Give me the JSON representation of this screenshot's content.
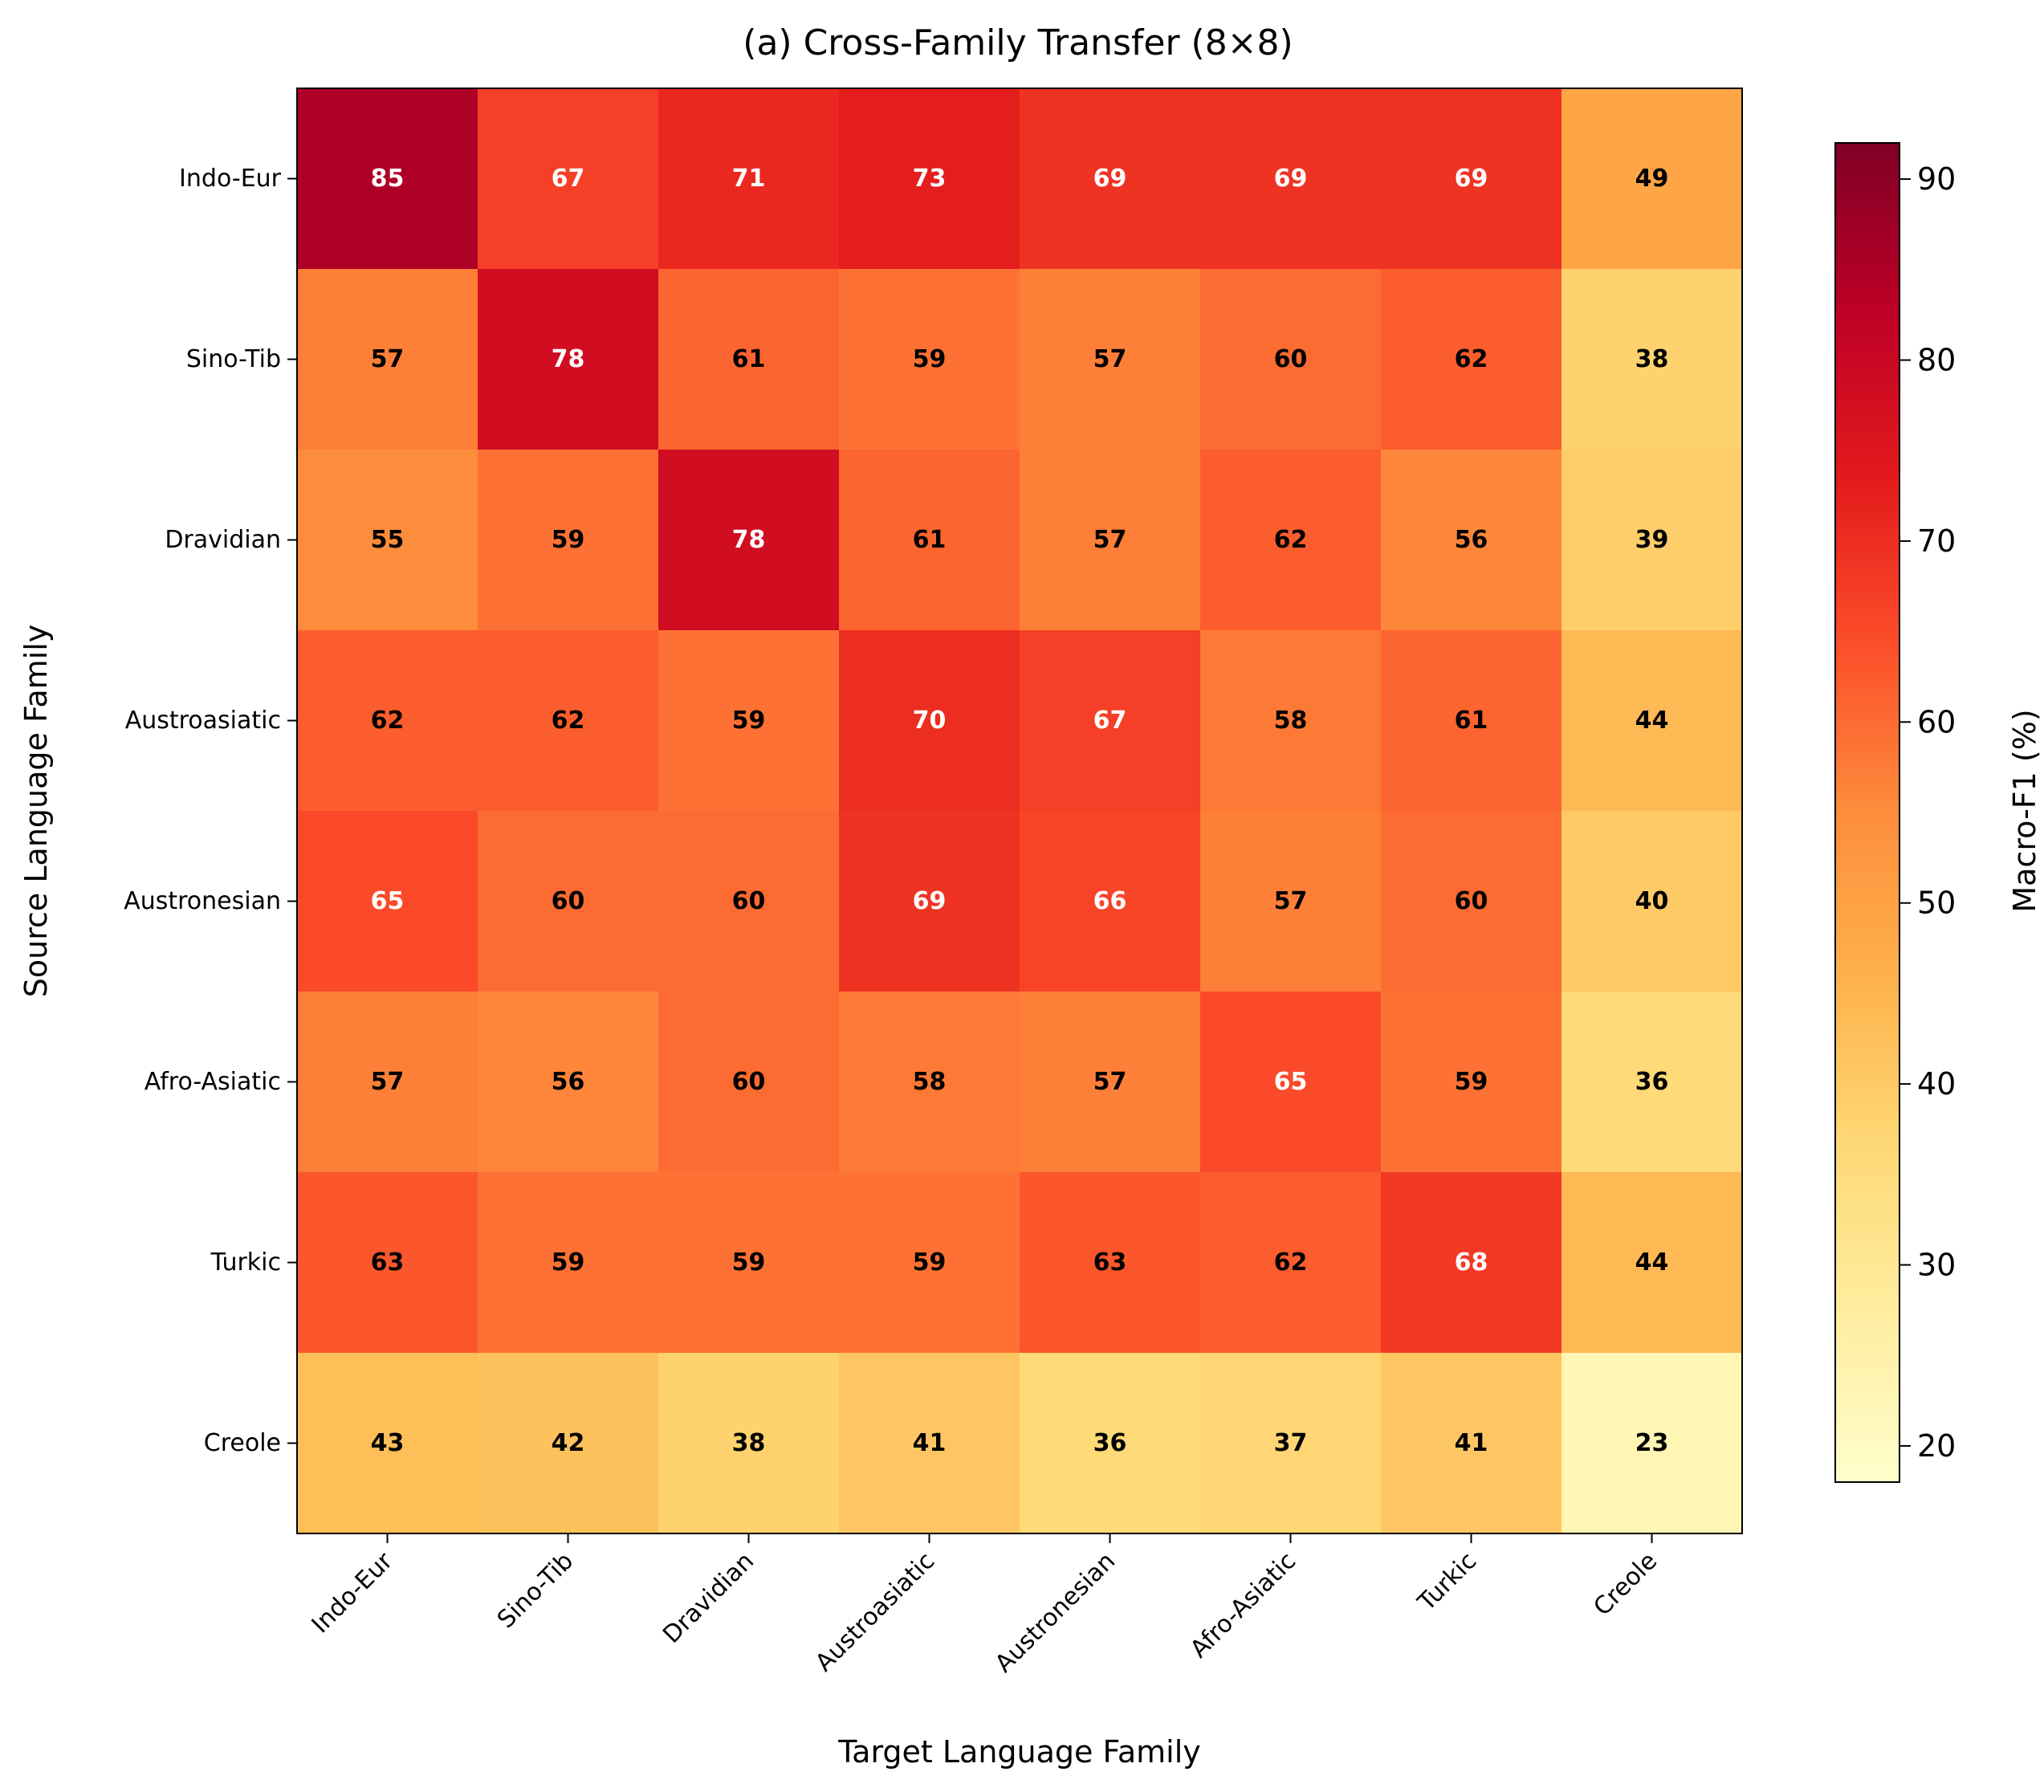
{
  "chart_data": {
    "type": "heatmap",
    "title": "(a) Cross-Family Transfer (8×8)",
    "xlabel": "Target Language Family",
    "ylabel": "Source Language Family",
    "x_categories": [
      "Indo-Eur",
      "Sino-Tib",
      "Dravidian",
      "Austroasiatic",
      "Austronesian",
      "Afro-Asiatic",
      "Turkic",
      "Creole"
    ],
    "y_categories": [
      "Indo-Eur",
      "Sino-Tib",
      "Dravidian",
      "Austroasiatic",
      "Austronesian",
      "Afro-Asiatic",
      "Turkic",
      "Creole"
    ],
    "values": [
      [
        85,
        67,
        71,
        73,
        69,
        69,
        69,
        49
      ],
      [
        57,
        78,
        61,
        59,
        57,
        60,
        62,
        38
      ],
      [
        55,
        59,
        78,
        61,
        57,
        62,
        56,
        39
      ],
      [
        62,
        62,
        59,
        70,
        67,
        58,
        61,
        44
      ],
      [
        65,
        60,
        60,
        69,
        66,
        57,
        60,
        40
      ],
      [
        57,
        56,
        60,
        58,
        57,
        65,
        59,
        36
      ],
      [
        63,
        59,
        59,
        59,
        63,
        62,
        68,
        44
      ],
      [
        43,
        42,
        38,
        41,
        36,
        37,
        41,
        23
      ]
    ],
    "colormap": "YlOrRd",
    "colormap_stops": [
      "#ffffcc",
      "#ffeda0",
      "#fed976",
      "#feb24c",
      "#fd8d3c",
      "#fc4e2a",
      "#e31a1c",
      "#bd0026",
      "#800026"
    ],
    "vmin": 18,
    "vmax": 92,
    "colorbar": {
      "label": "Macro-F1 (%)",
      "ticks": [
        20,
        30,
        40,
        50,
        60,
        70,
        80,
        90
      ]
    },
    "text_color_threshold": 65,
    "text_colors": {
      "light": "#ffffff",
      "dark": "#000000"
    }
  }
}
